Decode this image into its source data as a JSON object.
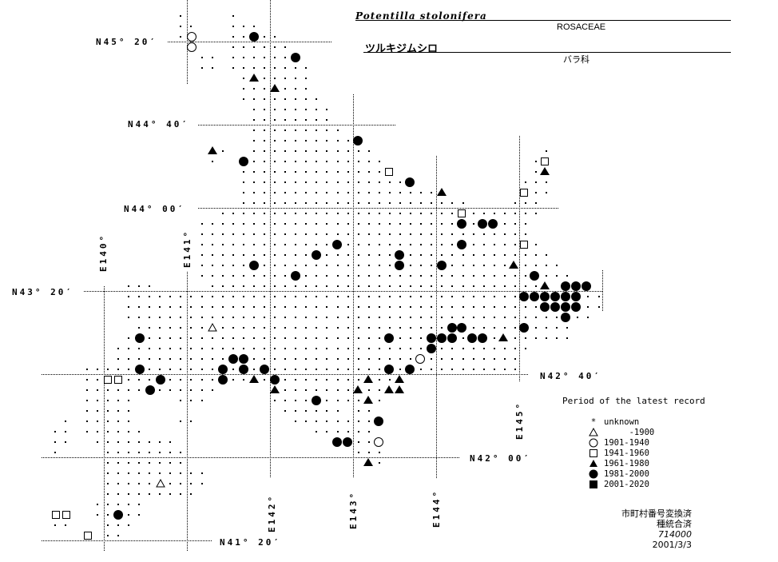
{
  "header": {
    "scientific_name": "Potentilla stolonifera",
    "family": "ROSACEAE",
    "japanese_name": "ツルキジムシロ",
    "family_japanese": "バラ科"
  },
  "latitude_labels": [
    "N45° 20′",
    "N44° 40′",
    "N44° 00′",
    "N43° 20′",
    "N42° 40′",
    "N42° 00′",
    "N41° 20′"
  ],
  "longitude_labels": [
    "E140°",
    "E141°",
    "E142°",
    "E143°",
    "E144°",
    "E145°"
  ],
  "legend": {
    "title": "Period of the latest record",
    "items": [
      {
        "symbol": "asterisk",
        "label": "unknown"
      },
      {
        "symbol": "open-triangle",
        "label": "     -1900"
      },
      {
        "symbol": "open-circle",
        "label": "1901-1940"
      },
      {
        "symbol": "open-square",
        "label": "1941-1960"
      },
      {
        "symbol": "filled-triangle",
        "label": "1961-1980"
      },
      {
        "symbol": "filled-circle",
        "label": "1981-2000"
      },
      {
        "symbol": "filled-square",
        "label": "2001-2020"
      }
    ]
  },
  "notes": {
    "line1": "市町村番号変換済",
    "line2": "種統合済",
    "code": "714000",
    "date": "2001/3/3"
  }
}
